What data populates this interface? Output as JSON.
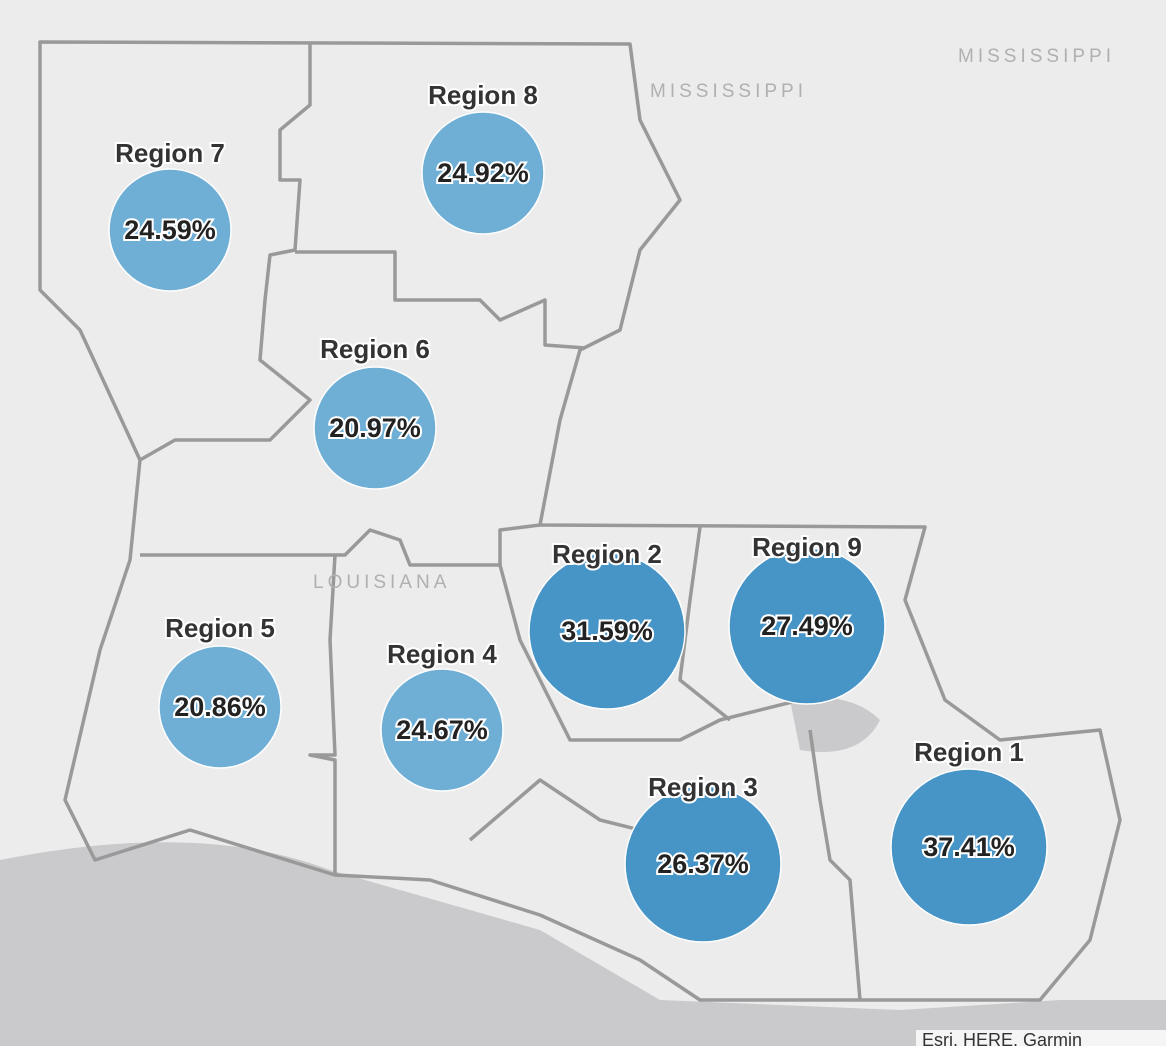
{
  "map": {
    "place_labels": [
      "MISSISSIPPI",
      "MISSISSIPPI",
      "LOUISIANA"
    ],
    "attribution": "Esri, HERE, Garmin",
    "regions": [
      {
        "name": "Region 7",
        "value": 24.59,
        "value_label": "24.59%",
        "color": "#6baed6"
      },
      {
        "name": "Region 8",
        "value": 24.92,
        "value_label": "24.92%",
        "color": "#6baed6"
      },
      {
        "name": "Region 6",
        "value": 20.97,
        "value_label": "20.97%",
        "color": "#6baed6"
      },
      {
        "name": "Region 5",
        "value": 20.86,
        "value_label": "20.86%",
        "color": "#6baed6"
      },
      {
        "name": "Region 4",
        "value": 24.67,
        "value_label": "24.67%",
        "color": "#6baed6"
      },
      {
        "name": "Region 2",
        "value": 31.59,
        "value_label": "31.59%",
        "color": "#4292c6"
      },
      {
        "name": "Region 9",
        "value": 27.49,
        "value_label": "27.49%",
        "color": "#4292c6"
      },
      {
        "name": "Region 3",
        "value": 26.37,
        "value_label": "26.37%",
        "color": "#4292c6"
      },
      {
        "name": "Region 1",
        "value": 37.41,
        "value_label": "37.41%",
        "color": "#4292c6"
      }
    ]
  }
}
